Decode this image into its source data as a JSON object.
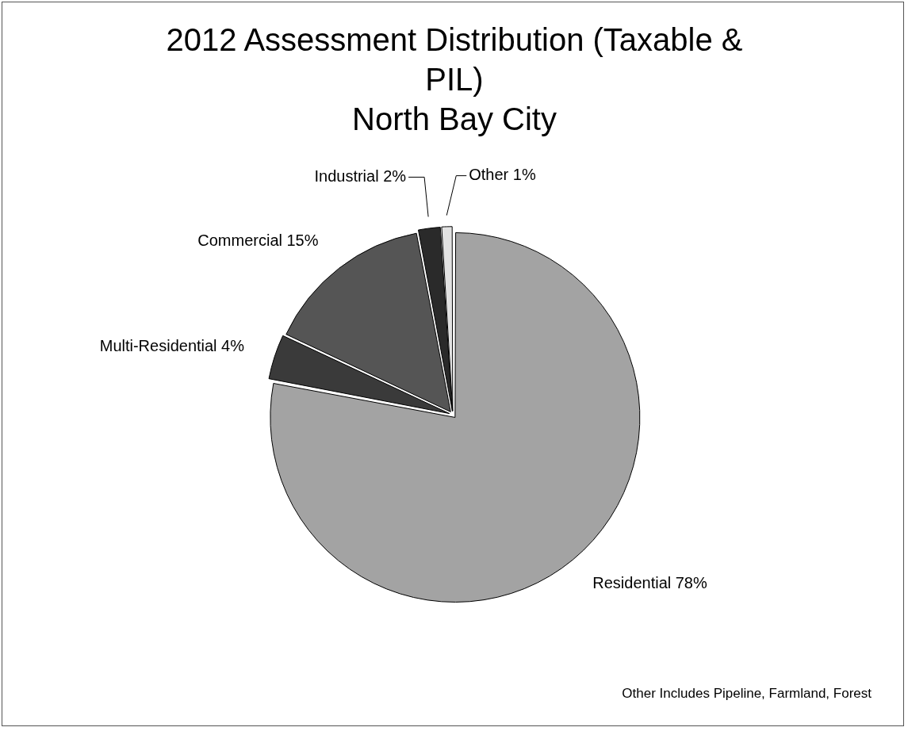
{
  "chart_data": {
    "type": "pie",
    "title": "2012 Assessment Distribution (Taxable & PIL)",
    "subtitle": "North Bay City",
    "categories": [
      "Residential",
      "Multi-Residential",
      "Commercial",
      "Industrial",
      "Other"
    ],
    "values": [
      78,
      4,
      15,
      2,
      1
    ],
    "colors": [
      "#a3a3a3",
      "#3a3a3a",
      "#555555",
      "#2a2a2a",
      "#e2e2e2"
    ],
    "value_labels": [
      "78%",
      "4%",
      "15%",
      "2%",
      "1%"
    ],
    "legend": false,
    "annotations": [
      "Other Includes Pipeline, Farmland, Forest"
    ]
  }
}
